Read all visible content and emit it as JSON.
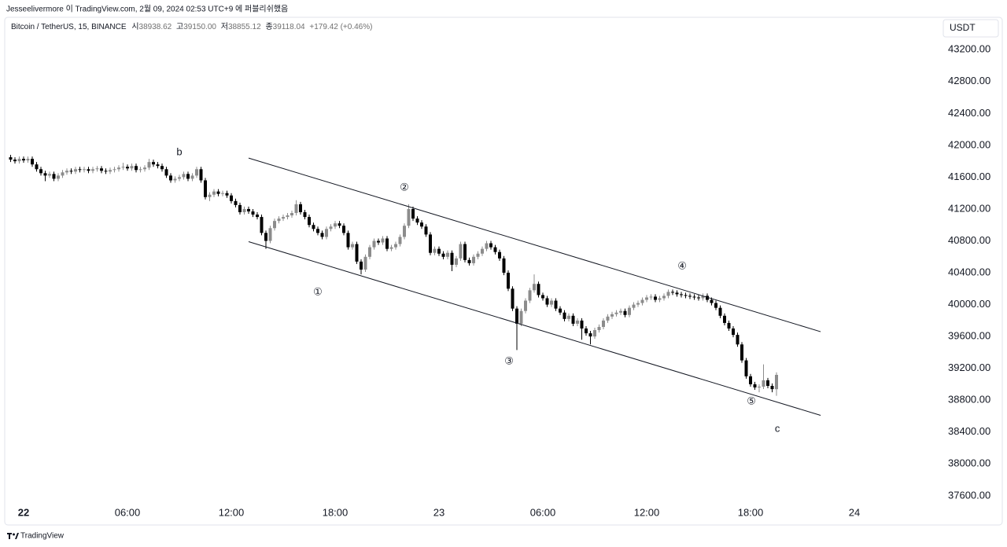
{
  "header": {
    "published": "Jesseelivermore 이 TradingView.com, 2월 09, 2024 02:53 UTC+9 에 퍼블리쉬했음",
    "symbol": "Bitcoin / TetherUS, 15, BINANCE",
    "ohlc": [
      {
        "label": "시",
        "value": "38938.62"
      },
      {
        "label": "고",
        "value": "39150.00"
      },
      {
        "label": "저",
        "value": "38855.12"
      },
      {
        "label": "종",
        "value": "39118.04"
      }
    ],
    "change": "+179.42 (+0.46%)"
  },
  "footer": {
    "brand": "TradingView"
  },
  "chart_data": {
    "type": "candlestick",
    "currency": "USDT",
    "up_color": "#8c8c8c",
    "down_color": "#000000",
    "grid": false,
    "xlim": [
      -1,
      53
    ],
    "ylim": [
      37490,
      43380
    ],
    "xticks": [
      {
        "value": 0,
        "label": "22"
      },
      {
        "value": 6,
        "label": "06:00"
      },
      {
        "value": 12,
        "label": "12:00"
      },
      {
        "value": 18,
        "label": "18:00"
      },
      {
        "value": 24,
        "label": "23"
      },
      {
        "value": 30,
        "label": "06:00"
      },
      {
        "value": 36,
        "label": "12:00"
      },
      {
        "value": 42,
        "label": "18:00"
      },
      {
        "value": 48,
        "label": "24"
      }
    ],
    "yticks": [
      {
        "value": 37600,
        "label": "37600.00"
      },
      {
        "value": 38000,
        "label": "38000.00"
      },
      {
        "value": 38400,
        "label": "38400.00"
      },
      {
        "value": 38800,
        "label": "38800.00"
      },
      {
        "value": 39200,
        "label": "39200.00"
      },
      {
        "value": 39600,
        "label": "39600.00"
      },
      {
        "value": 40000,
        "label": "40000.00"
      },
      {
        "value": 40400,
        "label": "40400.00"
      },
      {
        "value": 40800,
        "label": "40800.00"
      },
      {
        "value": 41200,
        "label": "41200.00"
      },
      {
        "value": 41600,
        "label": "41600.00"
      },
      {
        "value": 42000,
        "label": "42000.00"
      },
      {
        "value": 42400,
        "label": "42400.00"
      },
      {
        "value": 42800,
        "label": "42800.00"
      },
      {
        "value": 43200,
        "label": "43200.00"
      }
    ],
    "x": [
      -0.75,
      -0.5,
      -0.25,
      0,
      0.25,
      0.5,
      0.75,
      1,
      1.25,
      1.5,
      1.75,
      2,
      2.25,
      2.5,
      2.75,
      3,
      3.25,
      3.5,
      3.75,
      4,
      4.25,
      4.5,
      4.75,
      5,
      5.25,
      5.5,
      5.75,
      6,
      6.25,
      6.5,
      6.75,
      7,
      7.25,
      7.5,
      7.75,
      8,
      8.25,
      8.5,
      8.75,
      9,
      9.25,
      9.5,
      9.75,
      10,
      10.25,
      10.5,
      10.75,
      11,
      11.25,
      11.5,
      11.75,
      12,
      12.25,
      12.5,
      12.75,
      13,
      13.25,
      13.5,
      13.75,
      14,
      14.25,
      14.5,
      14.75,
      15,
      15.25,
      15.5,
      15.75,
      16,
      16.25,
      16.5,
      16.75,
      17,
      17.25,
      17.5,
      17.75,
      18,
      18.25,
      18.5,
      18.75,
      19,
      19.25,
      19.5,
      19.75,
      20,
      20.25,
      20.5,
      20.75,
      21,
      21.25,
      21.5,
      21.75,
      22,
      22.25,
      22.5,
      22.75,
      23,
      23.25,
      23.5,
      23.75,
      24,
      24.25,
      24.5,
      24.75,
      25,
      25.25,
      25.5,
      25.75,
      26,
      26.25,
      26.5,
      26.75,
      27,
      27.25,
      27.5,
      27.75,
      28,
      28.25,
      28.5,
      28.75,
      29,
      29.25,
      29.5,
      29.75,
      30,
      30.25,
      30.5,
      30.75,
      31,
      31.25,
      31.5,
      31.75,
      32,
      32.25,
      32.5,
      32.75,
      33,
      33.25,
      33.5,
      33.75,
      34,
      34.25,
      34.5,
      34.75,
      35,
      35.25,
      35.5,
      35.75,
      36,
      36.25,
      36.5,
      36.75,
      37,
      37.25,
      37.5,
      37.75,
      38,
      38.25,
      38.5,
      38.75,
      39,
      39.25,
      39.5,
      39.75,
      40,
      40.25,
      40.5,
      40.75,
      41,
      41.25,
      41.5,
      41.75,
      42,
      42.25,
      42.5,
      42.75,
      43,
      43.25,
      43.5
    ],
    "open": [
      41850,
      41820,
      41800,
      41830,
      41810,
      41830,
      41760,
      41700,
      41650,
      41620,
      41640,
      41580,
      41620,
      41660,
      41680,
      41670,
      41700,
      41690,
      41700,
      41680,
      41700,
      41710,
      41680,
      41670,
      41690,
      41700,
      41720,
      41730,
      41710,
      41740,
      41690,
      41700,
      41720,
      41790,
      41760,
      41740,
      41700,
      41620,
      41560,
      41580,
      41600,
      41640,
      41580,
      41620,
      41700,
      41560,
      41350,
      41380,
      41420,
      41390,
      41400,
      41370,
      41300,
      41250,
      41160,
      41200,
      41170,
      41130,
      41100,
      40900,
      40800,
      40960,
      41050,
      41080,
      41100,
      41120,
      41150,
      41260,
      41160,
      41100,
      41000,
      40950,
      40900,
      40850,
      40950,
      40980,
      41020,
      40990,
      40900,
      40720,
      40760,
      40540,
      40440,
      40600,
      40720,
      40800,
      40780,
      40830,
      40700,
      40720,
      40760,
      40850,
      40990,
      41200,
      41080,
      41030,
      40980,
      40880,
      40650,
      40700,
      40640,
      40600,
      40650,
      40500,
      40580,
      40760,
      40560,
      40520,
      40600,
      40640,
      40700,
      40770,
      40720,
      40660,
      40580,
      40400,
      40200,
      39950,
      39760,
      39920,
      40050,
      40180,
      40260,
      40120,
      40080,
      40000,
      40050,
      39950,
      39900,
      39820,
      39860,
      39760,
      39800,
      39700,
      39640,
      39600,
      39680,
      39720,
      39800,
      39850,
      39880,
      39900,
      39920,
      39870,
      39960,
      40000,
      40020,
      40060,
      40090,
      40100,
      40060,
      40080,
      40110,
      40160,
      40150,
      40130,
      40120,
      40110,
      40100,
      40090,
      40080,
      40110,
      40060,
      40020,
      39960,
      39860,
      39770,
      39700,
      39620,
      39500,
      39300,
      39100,
      39000,
      38960,
      38970,
      39050,
      38980,
      38938.62
    ],
    "high": [
      41880,
      41850,
      41860,
      41860,
      41860,
      41860,
      41790,
      41730,
      41680,
      41670,
      41670,
      41650,
      41690,
      41710,
      41710,
      41730,
      41730,
      41730,
      41730,
      41730,
      41740,
      41740,
      41710,
      41720,
      41730,
      41750,
      41780,
      41760,
      41770,
      41770,
      41730,
      41750,
      41830,
      41820,
      41790,
      41770,
      41730,
      41650,
      41610,
      41630,
      41670,
      41670,
      41650,
      41730,
      41730,
      41590,
      41410,
      41450,
      41450,
      41430,
      41430,
      41400,
      41330,
      41280,
      41230,
      41230,
      41200,
      41160,
      41130,
      40930,
      40990,
      41080,
      41110,
      41130,
      41150,
      41180,
      41310,
      41290,
      41190,
      41130,
      41030,
      40980,
      40930,
      40980,
      41010,
      41050,
      41050,
      41020,
      40930,
      40790,
      40790,
      40570,
      40630,
      40750,
      40830,
      40830,
      40860,
      40860,
      40750,
      40790,
      40880,
      41020,
      41260,
      41230,
      41110,
      41060,
      41010,
      40910,
      40730,
      40730,
      40670,
      40680,
      40680,
      40610,
      40790,
      40790,
      40590,
      40630,
      40670,
      40730,
      40800,
      40800,
      40750,
      40690,
      40610,
      40430,
      40230,
      39980,
      39950,
      40080,
      40210,
      40380,
      40290,
      40150,
      40110,
      40080,
      40080,
      39980,
      39930,
      39890,
      39890,
      39830,
      39830,
      39730,
      39670,
      39710,
      39750,
      39830,
      39880,
      39910,
      39930,
      39950,
      39950,
      39990,
      40030,
      40050,
      40090,
      40120,
      40130,
      40130,
      40110,
      40140,
      40190,
      40190,
      40180,
      40160,
      40150,
      40140,
      40130,
      40120,
      40140,
      40140,
      40090,
      40050,
      39990,
      39890,
      39800,
      39730,
      39650,
      39530,
      39330,
      39130,
      39030,
      39000,
      39250,
      39080,
      39010,
      39150
    ],
    "low": [
      41790,
      41770,
      41770,
      41780,
      41780,
      41730,
      41670,
      41620,
      41550,
      41590,
      41550,
      41550,
      41590,
      41630,
      41640,
      41640,
      41660,
      41660,
      41650,
      41650,
      41670,
      41650,
      41640,
      41640,
      41660,
      41670,
      41690,
      41680,
      41680,
      41660,
      41660,
      41670,
      41690,
      41730,
      41710,
      41670,
      41590,
      41530,
      41530,
      41550,
      41570,
      41550,
      41550,
      41590,
      41530,
      41320,
      41300,
      41350,
      41360,
      41360,
      41340,
      41270,
      41220,
      41130,
      41130,
      41140,
      41100,
      41070,
      40870,
      40700,
      40770,
      40930,
      41020,
      41050,
      41070,
      41090,
      41120,
      41130,
      41070,
      40970,
      40920,
      40870,
      40820,
      40820,
      40920,
      40950,
      40960,
      40870,
      40690,
      40690,
      40510,
      40380,
      40410,
      40570,
      40690,
      40750,
      40750,
      40670,
      40670,
      40690,
      40730,
      40820,
      40960,
      41050,
      41000,
      40950,
      40850,
      40620,
      40620,
      40610,
      40570,
      40570,
      40420,
      40470,
      40550,
      40530,
      40490,
      40490,
      40570,
      40610,
      40670,
      40690,
      40630,
      40550,
      40370,
      40170,
      39920,
      39430,
      39730,
      39890,
      40020,
      40150,
      40090,
      40050,
      39970,
      39970,
      39920,
      39870,
      39790,
      39790,
      39730,
      39730,
      39560,
      39610,
      39500,
      39570,
      39650,
      39690,
      39770,
      39820,
      39850,
      39870,
      39840,
      39840,
      39930,
      39970,
      39990,
      40030,
      40060,
      40030,
      40030,
      40050,
      40080,
      40120,
      40100,
      40090,
      40080,
      40070,
      40060,
      40050,
      40050,
      40030,
      39990,
      39930,
      39830,
      39740,
      39670,
      39590,
      39470,
      39270,
      39070,
      38970,
      38930,
      38900,
      38940,
      38950,
      38900,
      38855.12
    ],
    "close": [
      41820,
      41800,
      41830,
      41810,
      41830,
      41760,
      41700,
      41650,
      41620,
      41640,
      41580,
      41620,
      41660,
      41680,
      41670,
      41700,
      41690,
      41700,
      41680,
      41700,
      41710,
      41680,
      41670,
      41690,
      41700,
      41720,
      41730,
      41710,
      41740,
      41690,
      41700,
      41720,
      41790,
      41760,
      41740,
      41700,
      41620,
      41560,
      41580,
      41600,
      41640,
      41580,
      41620,
      41700,
      41560,
      41350,
      41380,
      41420,
      41390,
      41400,
      41370,
      41300,
      41250,
      41160,
      41200,
      41170,
      41130,
      41100,
      40900,
      40800,
      40960,
      41050,
      41080,
      41100,
      41120,
      41150,
      41260,
      41160,
      41100,
      41000,
      40950,
      40900,
      40850,
      40950,
      40980,
      41020,
      40990,
      40900,
      40720,
      40760,
      40540,
      40440,
      40600,
      40720,
      40800,
      40780,
      40830,
      40700,
      40720,
      40760,
      40850,
      40990,
      41200,
      41080,
      41030,
      40980,
      40880,
      40650,
      40700,
      40640,
      40600,
      40650,
      40500,
      40580,
      40760,
      40560,
      40520,
      40600,
      40640,
      40700,
      40770,
      40720,
      40660,
      40580,
      40400,
      40200,
      39950,
      39760,
      39920,
      40050,
      40180,
      40260,
      40120,
      40080,
      40000,
      40050,
      39950,
      39900,
      39820,
      39860,
      39760,
      39800,
      39700,
      39640,
      39600,
      39680,
      39720,
      39800,
      39850,
      39880,
      39900,
      39920,
      39870,
      39960,
      40000,
      40020,
      40060,
      40090,
      40100,
      40060,
      40080,
      40110,
      40160,
      40150,
      40130,
      40120,
      40110,
      40100,
      40090,
      40080,
      40110,
      40060,
      40020,
      39960,
      39860,
      39770,
      39700,
      39620,
      39500,
      39300,
      39100,
      39000,
      38960,
      38970,
      39050,
      38980,
      38938.62,
      39118.04
    ],
    "lines": [
      {
        "x": [
          13,
          46.05
        ],
        "y": [
          41840,
          39660
        ]
      },
      {
        "x": [
          13,
          46.05
        ],
        "y": [
          40790,
          38610
        ]
      }
    ],
    "annotations": [
      {
        "text": "b",
        "x": 9,
        "y": 41908
      },
      {
        "text": "①",
        "x": 17,
        "y": 40154
      },
      {
        "text": "②",
        "x": 22,
        "y": 41465
      },
      {
        "text": "③",
        "x": 28.05,
        "y": 39286
      },
      {
        "text": "④",
        "x": 38.05,
        "y": 40479
      },
      {
        "text": "⑤",
        "x": 42.05,
        "y": 38783
      },
      {
        "text": "c",
        "x": 43.55,
        "y": 38438
      }
    ]
  }
}
